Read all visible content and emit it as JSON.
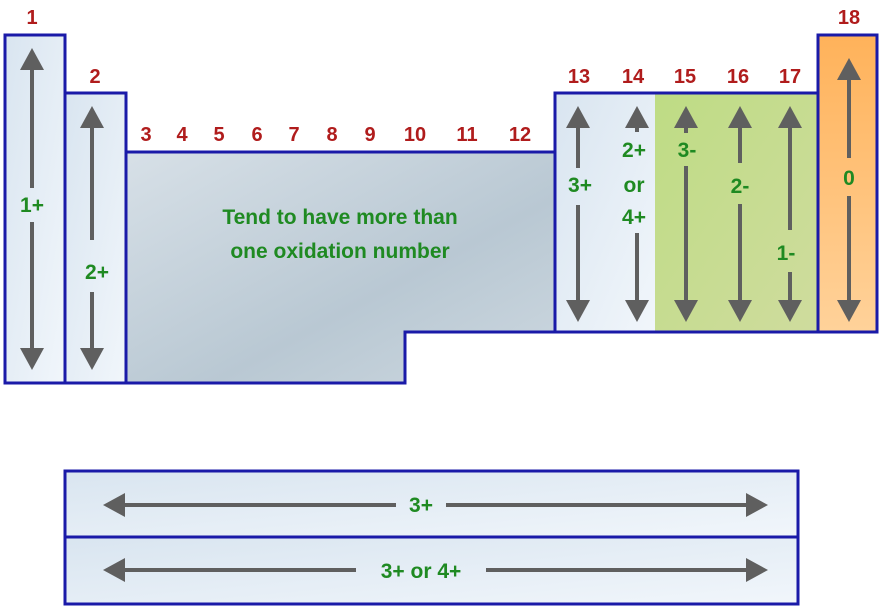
{
  "groups": [
    "1",
    "2",
    "3",
    "4",
    "5",
    "6",
    "7",
    "8",
    "9",
    "10",
    "11",
    "12",
    "13",
    "14",
    "15",
    "16",
    "17",
    "18"
  ],
  "oxidation": {
    "g1": "1+",
    "g2": "2+",
    "transition": [
      "Tend to have more than",
      "one oxidation number"
    ],
    "g13": "3+",
    "g14": [
      "2+",
      "or",
      "4+"
    ],
    "g15": "3-",
    "g16": "2-",
    "g17": "1-",
    "g18": "0",
    "lanthanides": "3+",
    "actinides": "3+ or 4+"
  },
  "colors": {
    "group_numbers": "#b01c1c",
    "oxidation_text": "#1f8a22",
    "border": "#1a1aa8",
    "arrow": "#5f5f5f",
    "nonmetal_fill": "#c4dc8c",
    "noble_gas_fill": "#ffbf75",
    "transition_fill": "#c2d0da",
    "metal_fill": "#e4edf5"
  }
}
